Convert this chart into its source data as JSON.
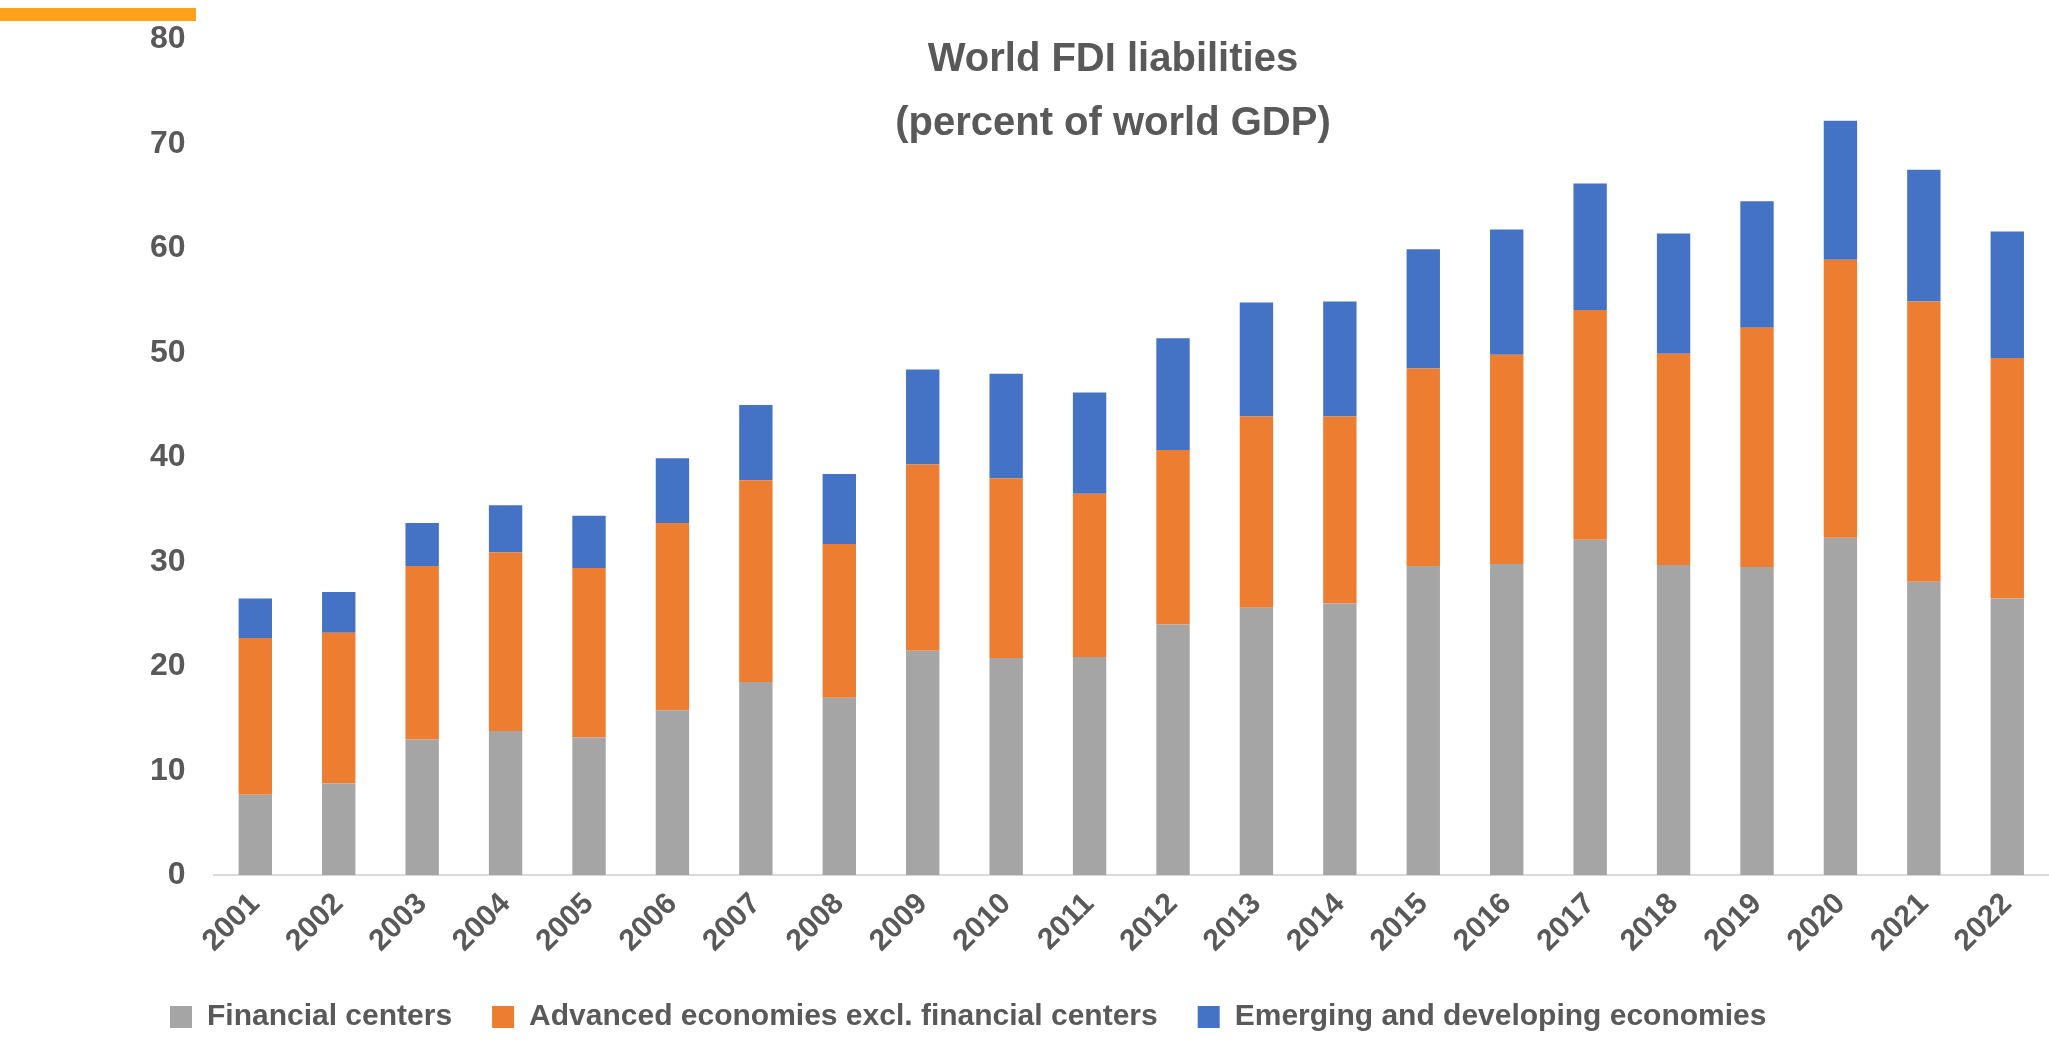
{
  "chart_data": {
    "type": "bar",
    "title": "World FDI liabilities\n(percent of world GDP)",
    "stacked": true,
    "legend": "bottom",
    "grid": false,
    "categories": [
      "2001",
      "2002",
      "2003",
      "2004",
      "2005",
      "2006",
      "2007",
      "2008",
      "2009",
      "2010",
      "2011",
      "2012",
      "2013",
      "2014",
      "2015",
      "2016",
      "2017",
      "2018",
      "2019",
      "2020",
      "2021",
      "2022"
    ],
    "ylim": [
      0,
      80
    ],
    "yticks": [
      0,
      10,
      20,
      30,
      40,
      50,
      60,
      70,
      80
    ],
    "series": [
      {
        "name": "Financial centers",
        "color": "#a5a5a5",
        "values": [
          7.7,
          8.8,
          13.0,
          13.8,
          13.2,
          15.8,
          18.5,
          17.0,
          21.5,
          20.8,
          20.9,
          24.0,
          25.6,
          26.0,
          29.6,
          29.8,
          32.1,
          29.7,
          29.5,
          32.3,
          28.1,
          26.5
        ]
      },
      {
        "name": "Advanced economies excl. financial centers",
        "color": "#ed7d31",
        "values": [
          15.0,
          14.4,
          16.6,
          17.1,
          16.2,
          17.9,
          19.3,
          14.7,
          17.8,
          17.2,
          15.6,
          16.7,
          18.3,
          17.9,
          18.9,
          20.0,
          22.0,
          20.2,
          22.9,
          26.6,
          26.8,
          23.0
        ]
      },
      {
        "name": "Emerging and developing economies",
        "color": "#4472c4",
        "values": [
          3.8,
          3.9,
          4.1,
          4.5,
          5.0,
          6.2,
          7.2,
          6.7,
          9.1,
          10.0,
          9.7,
          10.7,
          10.9,
          11.0,
          11.4,
          12.0,
          12.1,
          11.5,
          12.1,
          13.3,
          12.6,
          12.1
        ]
      }
    ]
  }
}
